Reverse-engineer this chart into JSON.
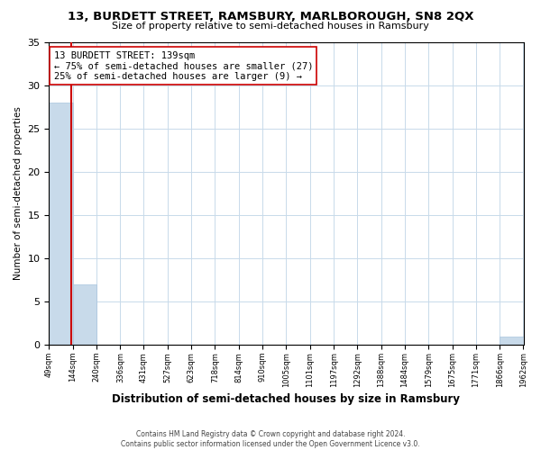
{
  "title": "13, BURDETT STREET, RAMSBURY, MARLBOROUGH, SN8 2QX",
  "subtitle": "Size of property relative to semi-detached houses in Ramsbury",
  "xlabel": "Distribution of semi-detached houses by size in Ramsbury",
  "ylabel": "Number of semi-detached properties",
  "bar_edges": [
    49,
    144,
    240,
    336,
    431,
    527,
    623,
    718,
    814,
    910,
    1005,
    1101,
    1197,
    1292,
    1388,
    1484,
    1579,
    1675,
    1771,
    1866,
    1962
  ],
  "bar_heights": [
    28,
    7,
    0,
    0,
    0,
    0,
    0,
    0,
    0,
    0,
    0,
    0,
    0,
    0,
    0,
    0,
    0,
    0,
    0,
    1,
    0
  ],
  "bar_color": "#c8daea",
  "bar_edge_color": "#a8c4de",
  "property_line_x": 139,
  "property_line_color": "#cc0000",
  "annotation_title": "13 BURDETT STREET: 139sqm",
  "annotation_line1": "← 75% of semi-detached houses are smaller (27)",
  "annotation_line2": "25% of semi-detached houses are larger (9) →",
  "annotation_box_color": "#ffffff",
  "annotation_box_edge_color": "#cc0000",
  "ylim": [
    0,
    35
  ],
  "yticks": [
    0,
    5,
    10,
    15,
    20,
    25,
    30,
    35
  ],
  "tick_labels": [
    "49sqm",
    "144sqm",
    "240sqm",
    "336sqm",
    "431sqm",
    "527sqm",
    "623sqm",
    "718sqm",
    "814sqm",
    "910sqm",
    "1005sqm",
    "1101sqm",
    "1197sqm",
    "1292sqm",
    "1388sqm",
    "1484sqm",
    "1579sqm",
    "1675sqm",
    "1771sqm",
    "1866sqm",
    "1962sqm"
  ],
  "footer1": "Contains HM Land Registry data © Crown copyright and database right 2024.",
  "footer2": "Contains public sector information licensed under the Open Government Licence v3.0.",
  "bg_color": "#ffffff",
  "grid_color": "#c8daea"
}
